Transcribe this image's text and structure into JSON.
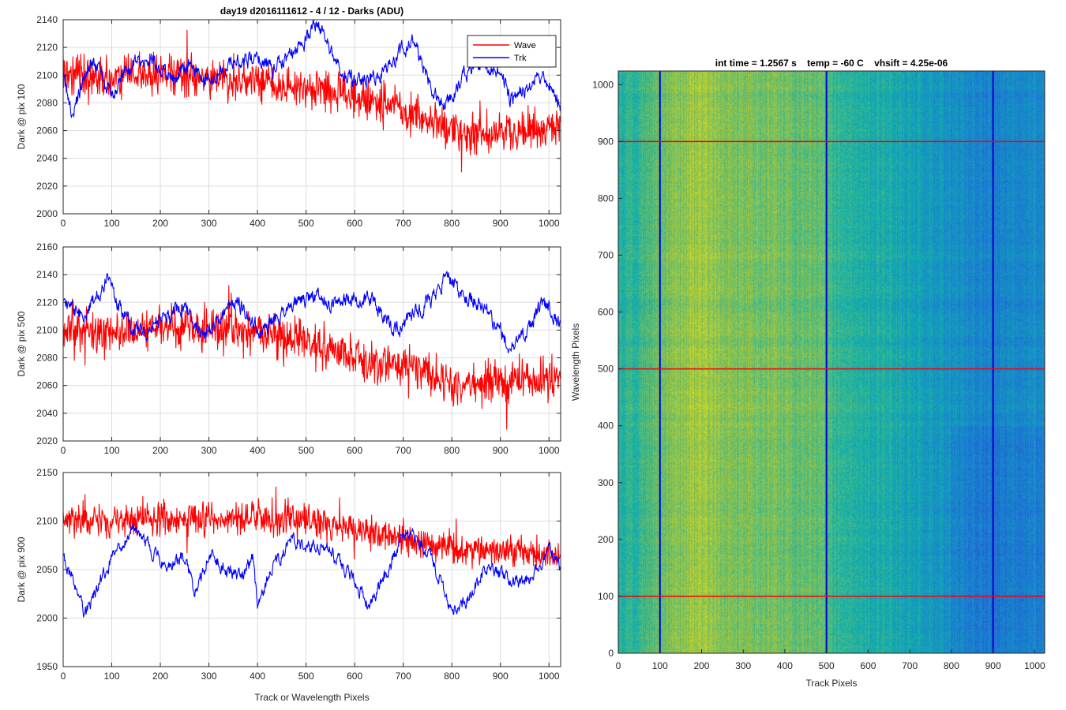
{
  "figure": {
    "title": "day19 d2016111612 - 4 / 12 - Darks (ADU)"
  },
  "chart_data": [
    {
      "type": "line",
      "title": "day19 d2016111612 - 4 / 12 - Darks (ADU)",
      "xlabel": "",
      "ylabel": "Dark @ pix 100",
      "xlim": [
        0,
        1024
      ],
      "ylim": [
        2000,
        2140
      ],
      "xticks": [
        0,
        100,
        200,
        300,
        400,
        500,
        600,
        700,
        800,
        900,
        1000
      ],
      "yticks": [
        2000,
        2020,
        2040,
        2060,
        2080,
        2100,
        2120,
        2140
      ],
      "grid": true,
      "legend": {
        "placement": "top-right",
        "entries": [
          "Wave",
          "Trk"
        ]
      },
      "series": [
        {
          "name": "Wave",
          "color": "#ff0000",
          "noise": 12,
          "anchors": [
            [
              0,
              2102
            ],
            [
              100,
              2098
            ],
            [
              200,
              2100
            ],
            [
              300,
              2098
            ],
            [
              400,
              2097
            ],
            [
              450,
              2093
            ],
            [
              500,
              2090
            ],
            [
              550,
              2088
            ],
            [
              600,
              2085
            ],
            [
              650,
              2080
            ],
            [
              700,
              2075
            ],
            [
              750,
              2068
            ],
            [
              800,
              2060
            ],
            [
              900,
              2058
            ],
            [
              1000,
              2062
            ],
            [
              1024,
              2064
            ]
          ]
        },
        {
          "name": "Trk",
          "color": "#0000ff",
          "noise": 4,
          "anchors": [
            [
              0,
              2098
            ],
            [
              20,
              2072
            ],
            [
              40,
              2094
            ],
            [
              60,
              2112
            ],
            [
              80,
              2100
            ],
            [
              100,
              2084
            ],
            [
              130,
              2105
            ],
            [
              170,
              2112
            ],
            [
              200,
              2105
            ],
            [
              230,
              2096
            ],
            [
              260,
              2110
            ],
            [
              300,
              2096
            ],
            [
              350,
              2110
            ],
            [
              400,
              2112
            ],
            [
              430,
              2105
            ],
            [
              470,
              2115
            ],
            [
              500,
              2125
            ],
            [
              520,
              2138
            ],
            [
              540,
              2128
            ],
            [
              570,
              2102
            ],
            [
              600,
              2096
            ],
            [
              650,
              2100
            ],
            [
              700,
              2118
            ],
            [
              720,
              2126
            ],
            [
              740,
              2108
            ],
            [
              760,
              2088
            ],
            [
              790,
              2078
            ],
            [
              820,
              2098
            ],
            [
              850,
              2108
            ],
            [
              900,
              2104
            ],
            [
              920,
              2082
            ],
            [
              950,
              2090
            ],
            [
              980,
              2100
            ],
            [
              1000,
              2094
            ],
            [
              1024,
              2078
            ]
          ]
        }
      ]
    },
    {
      "type": "line",
      "title": "",
      "xlabel": "",
      "ylabel": "Dark @ pix 500",
      "xlim": [
        0,
        1024
      ],
      "ylim": [
        2020,
        2160
      ],
      "xticks": [
        0,
        100,
        200,
        300,
        400,
        500,
        600,
        700,
        800,
        900,
        1000
      ],
      "yticks": [
        2020,
        2040,
        2060,
        2080,
        2100,
        2120,
        2140,
        2160
      ],
      "grid": true,
      "series": [
        {
          "name": "Wave",
          "color": "#ff0000",
          "noise": 12,
          "anchors": [
            [
              0,
              2100
            ],
            [
              100,
              2100
            ],
            [
              200,
              2102
            ],
            [
              300,
              2100
            ],
            [
              400,
              2098
            ],
            [
              450,
              2095
            ],
            [
              500,
              2092
            ],
            [
              550,
              2085
            ],
            [
              600,
              2080
            ],
            [
              650,
              2076
            ],
            [
              700,
              2075
            ],
            [
              750,
              2070
            ],
            [
              800,
              2062
            ],
            [
              900,
              2062
            ],
            [
              1000,
              2065
            ],
            [
              1024,
              2062
            ]
          ]
        },
        {
          "name": "Trk",
          "color": "#0000ff",
          "noise": 4,
          "anchors": [
            [
              0,
              2118
            ],
            [
              40,
              2110
            ],
            [
              70,
              2125
            ],
            [
              90,
              2138
            ],
            [
              110,
              2120
            ],
            [
              140,
              2104
            ],
            [
              170,
              2098
            ],
            [
              200,
              2110
            ],
            [
              250,
              2116
            ],
            [
              290,
              2096
            ],
            [
              330,
              2112
            ],
            [
              360,
              2120
            ],
            [
              390,
              2108
            ],
            [
              410,
              2096
            ],
            [
              440,
              2110
            ],
            [
              480,
              2120
            ],
            [
              520,
              2125
            ],
            [
              560,
              2118
            ],
            [
              600,
              2124
            ],
            [
              640,
              2120
            ],
            [
              680,
              2100
            ],
            [
              720,
              2110
            ],
            [
              760,
              2124
            ],
            [
              790,
              2140
            ],
            [
              820,
              2126
            ],
            [
              860,
              2120
            ],
            [
              900,
              2100
            ],
            [
              920,
              2085
            ],
            [
              950,
              2096
            ],
            [
              980,
              2116
            ],
            [
              1000,
              2118
            ],
            [
              1024,
              2100
            ]
          ]
        }
      ]
    },
    {
      "type": "line",
      "title": "",
      "xlabel": "Track or Wavelength Pixels",
      "ylabel": "Dark @ pix 900",
      "xlim": [
        0,
        1024
      ],
      "ylim": [
        1950,
        2150
      ],
      "xticks": [
        0,
        100,
        200,
        300,
        400,
        500,
        600,
        700,
        800,
        900,
        1000
      ],
      "yticks": [
        1950,
        2000,
        2050,
        2100,
        2150
      ],
      "grid": true,
      "series": [
        {
          "name": "Wave",
          "color": "#ff0000",
          "noise": 14,
          "anchors": [
            [
              0,
              2100
            ],
            [
              100,
              2098
            ],
            [
              200,
              2104
            ],
            [
              300,
              2102
            ],
            [
              400,
              2104
            ],
            [
              500,
              2100
            ],
            [
              600,
              2092
            ],
            [
              700,
              2082
            ],
            [
              800,
              2072
            ],
            [
              900,
              2068
            ],
            [
              1000,
              2066
            ],
            [
              1024,
              2062
            ]
          ]
        },
        {
          "name": "Trk",
          "color": "#0000ff",
          "noise": 5,
          "anchors": [
            [
              0,
              2062
            ],
            [
              20,
              2040
            ],
            [
              45,
              2003
            ],
            [
              70,
              2028
            ],
            [
              100,
              2062
            ],
            [
              140,
              2090
            ],
            [
              170,
              2078
            ],
            [
              210,
              2052
            ],
            [
              250,
              2064
            ],
            [
              270,
              2025
            ],
            [
              300,
              2065
            ],
            [
              330,
              2052
            ],
            [
              360,
              2040
            ],
            [
              390,
              2060
            ],
            [
              400,
              2012
            ],
            [
              430,
              2050
            ],
            [
              470,
              2080
            ],
            [
              500,
              2070
            ],
            [
              540,
              2076
            ],
            [
              560,
              2062
            ],
            [
              600,
              2038
            ],
            [
              630,
              2012
            ],
            [
              660,
              2040
            ],
            [
              700,
              2085
            ],
            [
              730,
              2080
            ],
            [
              760,
              2060
            ],
            [
              800,
              2008
            ],
            [
              830,
              2020
            ],
            [
              870,
              2050
            ],
            [
              900,
              2045
            ],
            [
              940,
              2035
            ],
            [
              970,
              2045
            ],
            [
              1000,
              2070
            ],
            [
              1024,
              2050
            ]
          ]
        }
      ]
    },
    {
      "type": "heatmap",
      "title": "int time = 1.2567 s    temp = -60 C    vhsift = 4.25e-06",
      "xlabel": "Track Pixels",
      "ylabel": "Wavelength Pixels",
      "xlim": [
        0,
        1024
      ],
      "ylim": [
        0,
        1024
      ],
      "xticks": [
        0,
        100,
        200,
        300,
        400,
        500,
        600,
        700,
        800,
        900,
        1000
      ],
      "yticks": [
        0,
        100,
        200,
        300,
        400,
        500,
        600,
        700,
        800,
        900,
        1000
      ],
      "grid": false,
      "colormap": "parula",
      "column_profile": [
        [
          0,
          0.5
        ],
        [
          100,
          0.62
        ],
        [
          180,
          0.74
        ],
        [
          300,
          0.68
        ],
        [
          500,
          0.62
        ],
        [
          520,
          0.55
        ],
        [
          650,
          0.48
        ],
        [
          800,
          0.36
        ],
        [
          900,
          0.3
        ],
        [
          1024,
          0.36
        ]
      ],
      "track_markers": {
        "color": "#0000cc",
        "x": [
          100,
          500,
          900
        ]
      },
      "wavelength_markers": {
        "color": "#ff0000",
        "y": [
          100,
          500,
          900
        ]
      }
    }
  ]
}
